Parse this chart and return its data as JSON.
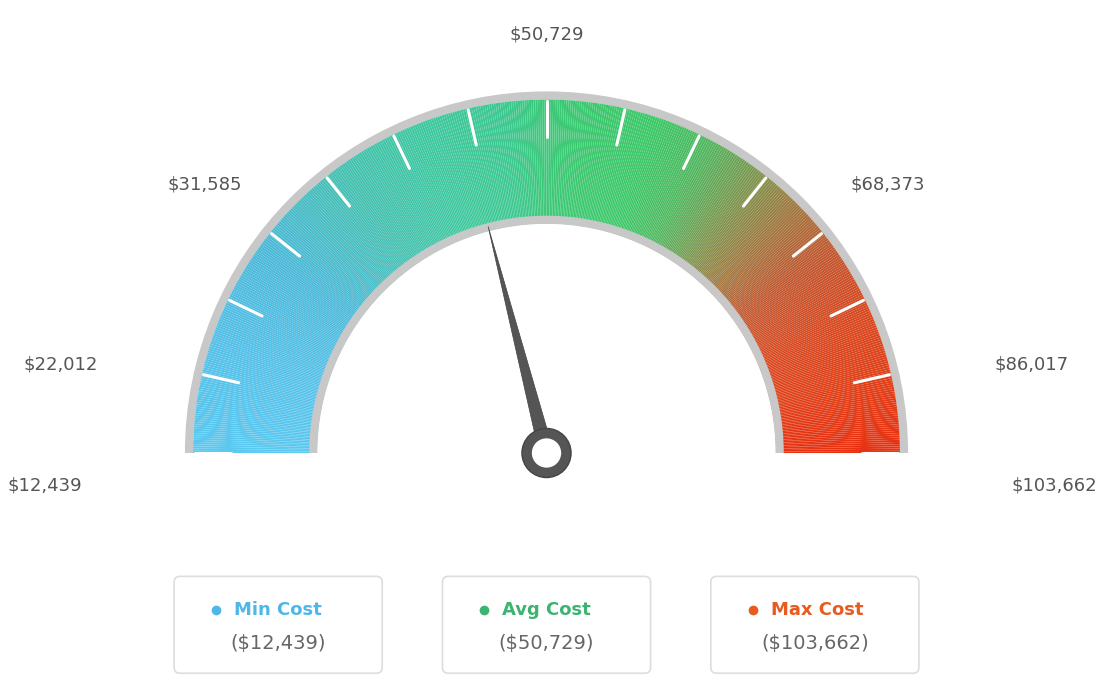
{
  "min_value": 12439,
  "max_value": 103662,
  "avg_value": 50729,
  "legend_min_color": "#4DB8E8",
  "legend_avg_color": "#3CB371",
  "legend_max_color": "#E85A1E",
  "legend_min_label": "Min Cost",
  "legend_avg_label": "Avg Cost",
  "legend_max_label": "Max Cost",
  "legend_min_value": "($12,439)",
  "legend_avg_value": "($50,729)",
  "legend_max_value": "($103,662)",
  "background_color": "#ffffff",
  "color_stops": [
    [
      0.0,
      "#5BC8F0"
    ],
    [
      0.1,
      "#55C0E8"
    ],
    [
      0.2,
      "#4BB8D8"
    ],
    [
      0.3,
      "#45C0B0"
    ],
    [
      0.38,
      "#3EC8A0"
    ],
    [
      0.46,
      "#3DC890"
    ],
    [
      0.5,
      "#3DC878"
    ],
    [
      0.54,
      "#3DC870"
    ],
    [
      0.6,
      "#3DC868"
    ],
    [
      0.65,
      "#50B860"
    ],
    [
      0.7,
      "#7A9850"
    ],
    [
      0.75,
      "#A07840"
    ],
    [
      0.8,
      "#C05830"
    ],
    [
      0.87,
      "#D84820"
    ],
    [
      0.93,
      "#E04018"
    ],
    [
      1.0,
      "#E83010"
    ]
  ],
  "outer_ring_color": "#D0D0D0",
  "inner_ring_color": "#C8C8C8",
  "needle_color": "#555555",
  "tick_color": "#FFFFFF",
  "label_color": "#555555",
  "label_fontsize": 13,
  "legend_label_fontsize": 13,
  "legend_value_fontsize": 14
}
